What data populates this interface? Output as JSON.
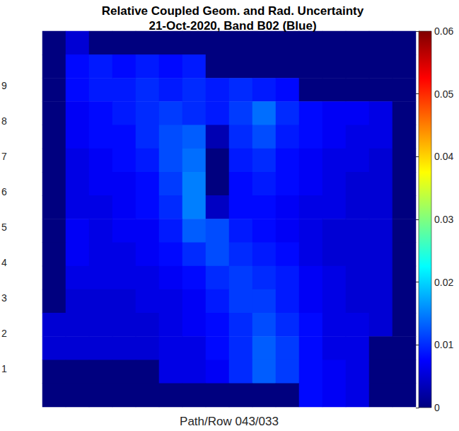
{
  "chart_data": {
    "type": "heatmap",
    "title": "Relative Coupled Geom. and Rad. Uncertainty",
    "subtitle": "21-Oct-2020, Band B02 (Blue)",
    "xlabel": "Path/Row 043/033",
    "tick_labels": false,
    "grid": false,
    "left_edge_labels": [
      9,
      8,
      7,
      6,
      5,
      4,
      3,
      2,
      1
    ],
    "colorbar_range": [
      0,
      0.06
    ],
    "colorbar_ticks": [
      0,
      0.01,
      0.02,
      0.03,
      0.04,
      0.05,
      0.06
    ],
    "cells": [
      [
        0,
        0.005,
        0,
        0,
        0,
        0,
        0,
        0,
        0,
        0,
        0,
        0,
        0,
        0,
        0,
        0
      ],
      [
        0,
        0.008,
        0.009,
        0.008,
        0.009,
        0.008,
        0.009,
        0,
        0,
        0,
        0,
        0,
        0,
        0,
        0,
        0
      ],
      [
        0,
        0.008,
        0.009,
        0.009,
        0.01,
        0.009,
        0.01,
        0.009,
        0.01,
        0.009,
        0.008,
        0,
        0,
        0,
        0,
        0
      ],
      [
        0,
        0.007,
        0.008,
        0.009,
        0.01,
        0.011,
        0.01,
        0.009,
        0.011,
        0.014,
        0.01,
        0.008,
        0.007,
        0.007,
        0.006,
        0
      ],
      [
        0,
        0.007,
        0.008,
        0.008,
        0.01,
        0.012,
        0.013,
        0.003,
        0.01,
        0.012,
        0.009,
        0.008,
        0.007,
        0.006,
        0.006,
        0
      ],
      [
        0,
        0.006,
        0.007,
        0.008,
        0.009,
        0.012,
        0.014,
        0,
        0.009,
        0.01,
        0.008,
        0.007,
        0.006,
        0.006,
        0.005,
        0
      ],
      [
        0,
        0.006,
        0.007,
        0.007,
        0.008,
        0.011,
        0.015,
        0,
        0.008,
        0.009,
        0.008,
        0.007,
        0.006,
        0.005,
        0.005,
        0
      ],
      [
        0,
        0.006,
        0.006,
        0.007,
        0.008,
        0.01,
        0.015,
        0.004,
        0.008,
        0.008,
        0.007,
        0.006,
        0.006,
        0.005,
        0.005,
        0
      ],
      [
        0,
        0.007,
        0.006,
        0.007,
        0.007,
        0.009,
        0.013,
        0.012,
        0.009,
        0.008,
        0.007,
        0.006,
        0.005,
        0.005,
        0.005,
        0
      ],
      [
        0,
        0.007,
        0.006,
        0.006,
        0.007,
        0.008,
        0.01,
        0.012,
        0.01,
        0.009,
        0.008,
        0.006,
        0.005,
        0.005,
        0.005,
        0
      ],
      [
        0,
        0.006,
        0.006,
        0.006,
        0.006,
        0.007,
        0.008,
        0.01,
        0.011,
        0.01,
        0.009,
        0.007,
        0.006,
        0.005,
        0.005,
        0
      ],
      [
        0,
        0.005,
        0.005,
        0.005,
        0.006,
        0.006,
        0.007,
        0.009,
        0.011,
        0.011,
        0.009,
        0.007,
        0.006,
        0.005,
        0.005,
        0
      ],
      [
        0.005,
        0.005,
        0.005,
        0.005,
        0.005,
        0.006,
        0.007,
        0.008,
        0.01,
        0.012,
        0.01,
        0.008,
        0.006,
        0.006,
        0.005,
        0
      ],
      [
        0.005,
        0.005,
        0.005,
        0.005,
        0.005,
        0.006,
        0.006,
        0.008,
        0.01,
        0.013,
        0.011,
        0.008,
        0.006,
        0.006,
        0,
        0
      ],
      [
        0,
        0,
        0,
        0,
        0,
        0.006,
        0.006,
        0.007,
        0.01,
        0.013,
        0.011,
        0.008,
        0.007,
        0.006,
        0,
        0
      ],
      [
        0,
        0,
        0,
        0,
        0,
        0,
        0,
        0,
        0,
        0,
        0,
        0.008,
        0.007,
        0.006,
        0,
        0
      ]
    ]
  }
}
